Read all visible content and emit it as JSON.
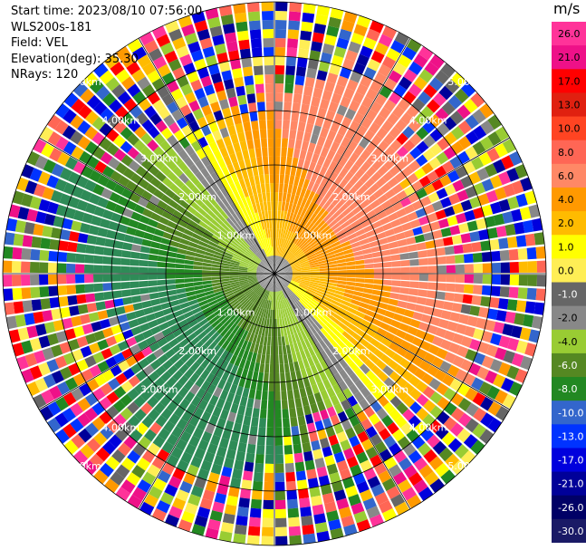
{
  "header": {
    "start_time": "Start time: 2023/08/10 07:56:00",
    "station": "WLS200s-181",
    "field": "Field: VEL",
    "elevation": "Elevation(deg): 35.30",
    "nrays": "NRays: 120"
  },
  "colorbar": {
    "unit": "m/s",
    "ticks": [
      "26.0",
      "21.0",
      "17.0",
      "13.0",
      "10.0",
      "8.0",
      "6.0",
      "4.0",
      "2.0",
      "1.0",
      "0.0",
      "-1.0",
      "-2.0",
      "-4.0",
      "-6.0",
      "-8.0",
      "-10.0",
      "-13.0",
      "-17.0",
      "-21.0",
      "-26.0",
      "-30.0"
    ],
    "colors": [
      "#ff3399",
      "#ee1188",
      "#ff0000",
      "#e02010",
      "#ff4422",
      "#ff6655",
      "#ff8866",
      "#ff9900",
      "#ffbb00",
      "#ffff00",
      "#ffee55",
      "#666666",
      "#888888",
      "#99cc33",
      "#558822",
      "#228822",
      "#3366cc",
      "#0033ff",
      "#0000dd",
      "#000099",
      "#000066",
      "#1a1a66"
    ]
  },
  "ppi": {
    "range_labels": [
      "1.00km",
      "2.00km",
      "3.00km",
      "4.00km",
      "5.00km"
    ],
    "max_range_km": 5.0,
    "nrays": 120,
    "gates": 30
  }
}
